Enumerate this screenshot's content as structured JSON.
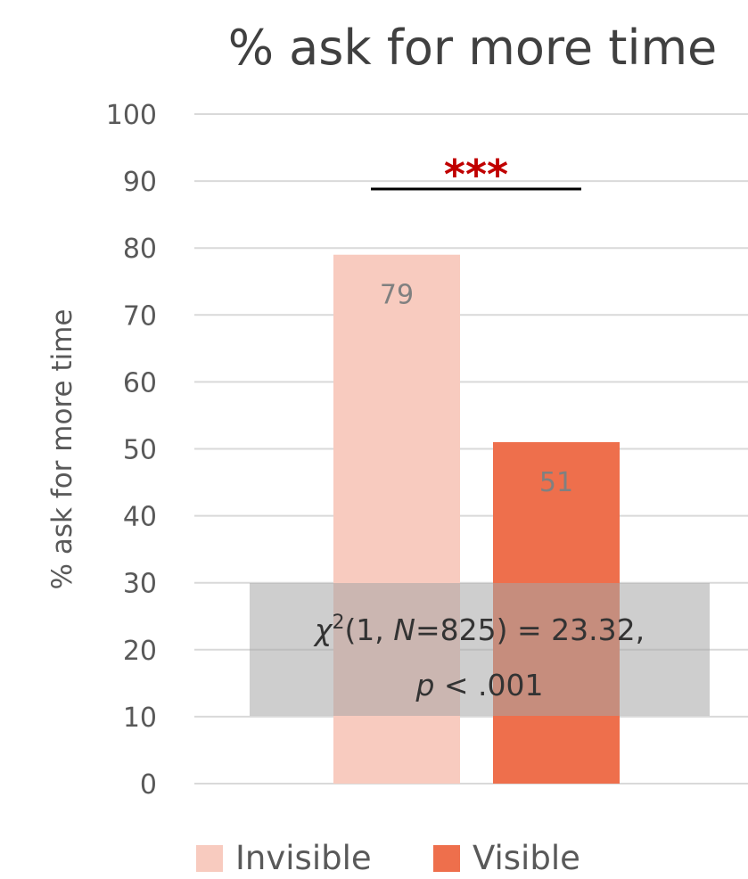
{
  "chart_data": {
    "type": "bar",
    "title": "% ask for more time",
    "ylabel": "% ask for more time",
    "xlabel": "",
    "ylim": [
      0,
      100
    ],
    "yticks": [
      0,
      10,
      20,
      30,
      40,
      50,
      60,
      70,
      80,
      90,
      100
    ],
    "grid": true,
    "legend_position": "bottom",
    "categories": [
      "Invisible",
      "Visible"
    ],
    "values": [
      79,
      51
    ],
    "data_labels": [
      "79",
      "51"
    ],
    "colors": [
      "#f8cbbf",
      "#ee6f4c"
    ],
    "significance": "***",
    "significance_color": "#c00000",
    "annotation": {
      "line1_prefix": "χ",
      "line1_sup": "2",
      "line1_mid": "(1, ",
      "line1_italic": "N",
      "line1_rest": "=825) = 23.32,",
      "line2_italic": "p",
      "line2_rest": " < .001"
    }
  }
}
